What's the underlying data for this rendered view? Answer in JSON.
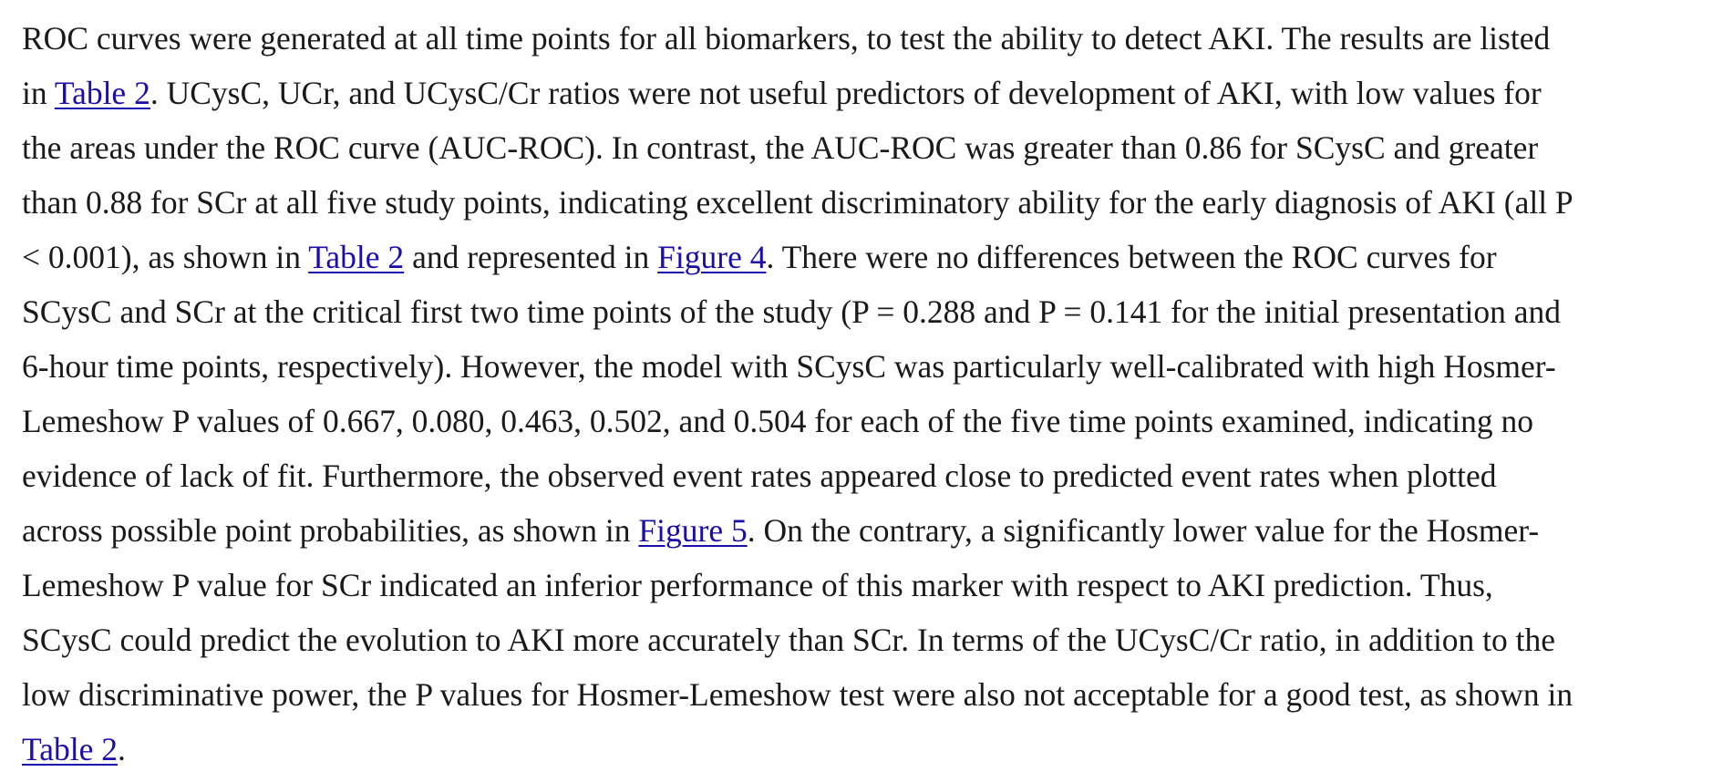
{
  "paragraph": {
    "l1": "ROC curves were generated at all time points for all biomarkers, to test the ability to detect AKI. The results are listed",
    "l2_a": "in ",
    "l2_link": "Table 2",
    "l2_b": ". UCysC, UCr, and UCysC/Cr ratios were not useful predictors of development of AKI, with low values for",
    "l3": "the areas under the ROC curve (AUC-ROC). In contrast, the AUC-ROC was greater than 0.86 for SCysC and greater",
    "l4": "than 0.88 for SCr at all five study points, indicating excellent discriminatory ability for the early diagnosis of AKI (all P",
    "l5_a": "< 0.001), as shown in ",
    "l5_link1": "Table 2",
    "l5_b": " and represented in ",
    "l5_link2": "Figure 4",
    "l5_c": ". There were no differences between the ROC curves for",
    "l6": "SCysC and SCr at the critical first two time points of the study (P = 0.288 and P = 0.141 for the initial presentation and",
    "l7": "6-hour time points, respectively). However, the model with SCysC was particularly well-calibrated with high Hosmer-",
    "l8": "Lemeshow P values of 0.667, 0.080, 0.463, 0.502, and 0.504 for each of the five time points examined, indicating no",
    "l9": "evidence of lack of fit. Furthermore, the observed event rates appeared close to predicted event rates when plotted",
    "l10_a": "across possible point probabilities, as shown in ",
    "l10_link": "Figure 5",
    "l10_b": ". On the contrary, a significantly lower value for the Hosmer-",
    "l11": "Lemeshow P value for SCr indicated an inferior performance of this marker with respect to AKI prediction. Thus,",
    "l12": "SCysC could predict the evolution to AKI more accurately than SCr. In terms of the UCysC/Cr ratio, in addition to the",
    "l13": "low discriminative power, the P values for Hosmer-Lemeshow test were also not acceptable for a good test, as shown in",
    "l14_link": "Table 2",
    "l14_b": "."
  },
  "colors": {
    "text": "#1a1a1a",
    "link": "#1a0dab",
    "background": "#ffffff"
  }
}
